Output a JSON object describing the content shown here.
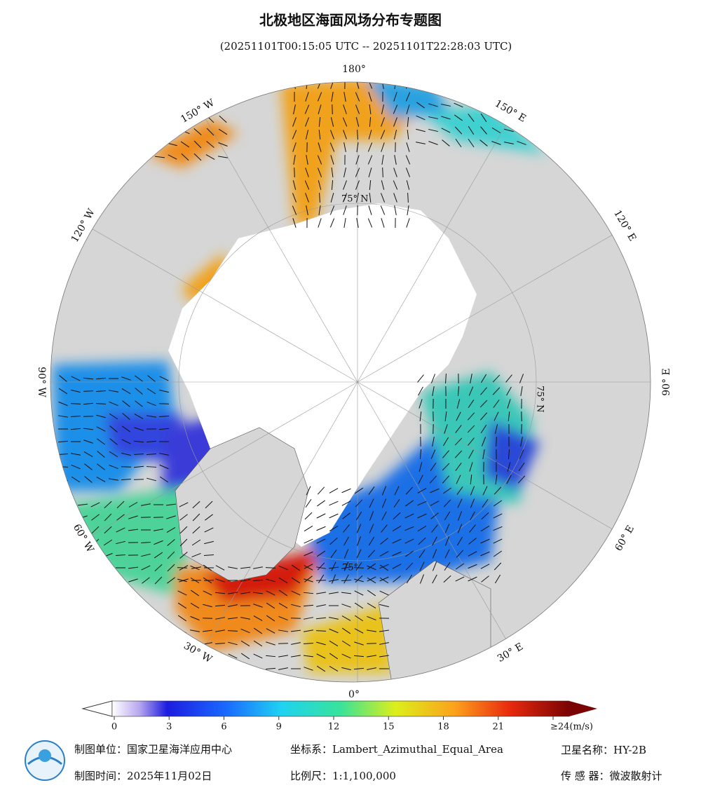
{
  "header": {
    "title": "北极地区海面风场分布专题图",
    "subtitle": "(20251101T00:15:05 UTC -- 20251101T22:28:03 UTC)"
  },
  "map": {
    "lon_labels": [
      "180°",
      "150° E",
      "120° E",
      "90° E",
      "60° E",
      "30° E",
      "0°",
      "30° W",
      "60° W",
      "90° W",
      "120° W",
      "150° W"
    ],
    "lat_labels": [
      "75° N",
      "75° N",
      "75°"
    ]
  },
  "colorbar": {
    "range": [
      0,
      24
    ],
    "ticks": [
      0,
      3,
      6,
      9,
      12,
      15,
      18,
      21,
      {
        "value": 24,
        "label": "≥24(m/s)"
      }
    ]
  },
  "footer": {
    "unit": "制图单位：国家卫星海洋应用中心",
    "crs": "坐标系：Lambert_Azimuthal_Equal_Area",
    "satellite": "卫星名称：HY-2B",
    "date": "制图时间：2025年11月02日",
    "scale": "比例尺：1:1,100,000",
    "sensor": "传 感 器：微波散射计"
  }
}
